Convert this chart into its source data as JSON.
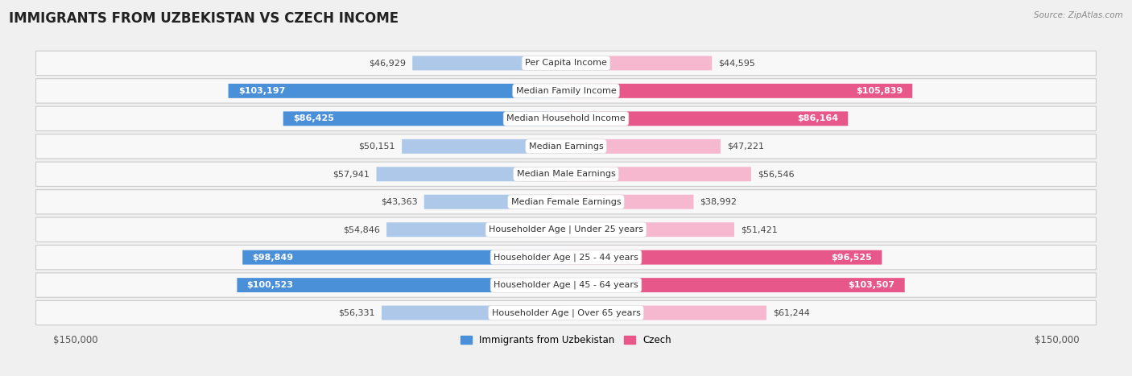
{
  "title": "IMMIGRANTS FROM UZBEKISTAN VS CZECH INCOME",
  "source": "Source: ZipAtlas.com",
  "categories": [
    "Per Capita Income",
    "Median Family Income",
    "Median Household Income",
    "Median Earnings",
    "Median Male Earnings",
    "Median Female Earnings",
    "Householder Age | Under 25 years",
    "Householder Age | 25 - 44 years",
    "Householder Age | 45 - 64 years",
    "Householder Age | Over 65 years"
  ],
  "uzbekistan_values": [
    46929,
    103197,
    86425,
    50151,
    57941,
    43363,
    54846,
    98849,
    100523,
    56331
  ],
  "czech_values": [
    44595,
    105839,
    86164,
    47221,
    56546,
    38992,
    51421,
    96525,
    103507,
    61244
  ],
  "uzbekistan_labels": [
    "$46,929",
    "$103,197",
    "$86,425",
    "$50,151",
    "$57,941",
    "$43,363",
    "$54,846",
    "$98,849",
    "$100,523",
    "$56,331"
  ],
  "czech_labels": [
    "$44,595",
    "$105,839",
    "$86,164",
    "$47,221",
    "$56,546",
    "$38,992",
    "$51,421",
    "$96,525",
    "$103,507",
    "$61,244"
  ],
  "uzbekistan_color_light": "#adc8e8",
  "uzbekistan_color_dark": "#4a90d9",
  "czech_color_light": "#f5b8ce",
  "czech_color_dark": "#e8578a",
  "max_value": 150000,
  "bar_height": 0.52,
  "background_color": "#f0f0f0",
  "row_bg": "#f8f8f8",
  "label_fontsize": 8.0,
  "category_fontsize": 8.0,
  "title_fontsize": 12,
  "uzb_thresh": 75000,
  "czk_thresh": 75000
}
